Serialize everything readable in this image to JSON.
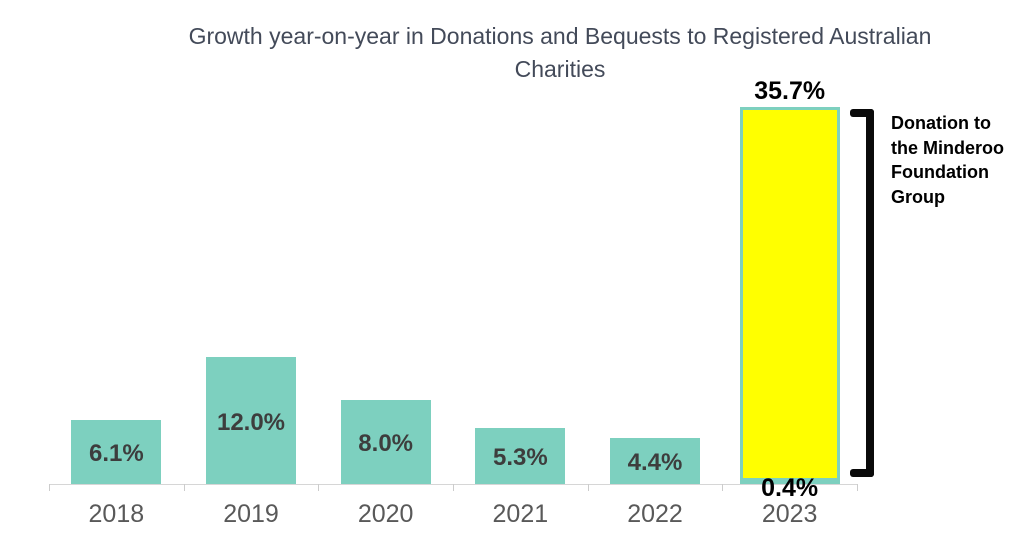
{
  "chart_data": {
    "type": "bar",
    "title": "Growth year-on-year in Donations and Bequests to Registered Australian Charities",
    "categories": [
      "2018",
      "2019",
      "2020",
      "2021",
      "2022",
      "2023"
    ],
    "series": [
      {
        "name": "base-growth",
        "color": "#7dd0bf",
        "values": [
          6.1,
          12.0,
          8.0,
          5.3,
          4.4,
          0.4
        ]
      },
      {
        "name": "highlight-2023-total",
        "color": "#ffff00",
        "border_color": "#7dd0bf",
        "values": [
          null,
          null,
          null,
          null,
          null,
          35.7
        ]
      }
    ],
    "bars": [
      {
        "year": "2018",
        "value": 6.1,
        "label": "6.1%"
      },
      {
        "year": "2019",
        "value": 12.0,
        "label": "12.0%"
      },
      {
        "year": "2020",
        "value": 8.0,
        "label": "8.0%"
      },
      {
        "year": "2021",
        "value": 5.3,
        "label": "5.3%"
      },
      {
        "year": "2022",
        "value": 4.4,
        "label": "4.4%"
      },
      {
        "year": "2023",
        "value": 0.4,
        "label": "0.4%",
        "highlight": {
          "value": 35.7,
          "label": "35.7%"
        }
      }
    ],
    "annotation": {
      "text": "Donation to the Minderoo Foundation Group"
    },
    "xlabel": "",
    "ylabel": "",
    "ylim": [
      0,
      38
    ],
    "grid": false,
    "legend": false,
    "colors": {
      "bar_teal": "#7dd0bf",
      "bar_highlight_fill": "#ffff00",
      "bar_highlight_border": "#7dd0bf",
      "title_text": "#434a59",
      "value_label_text": "#3d3d3d",
      "axis_label_text": "#595959",
      "annotation_text": "#000000",
      "axis_line": "#d6d6d6"
    }
  }
}
